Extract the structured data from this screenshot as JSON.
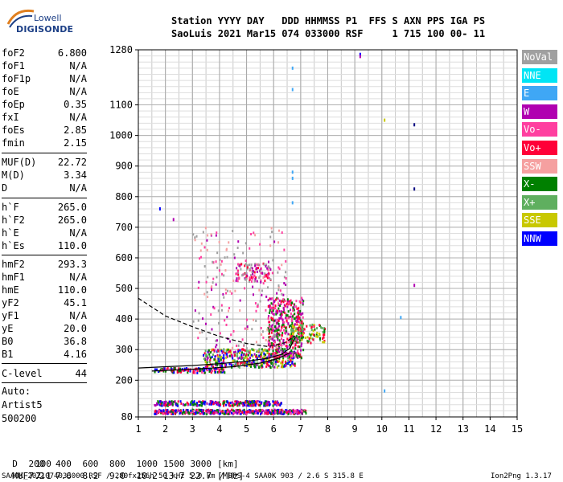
{
  "logo": {
    "line1": "Lowell",
    "line2": "DIGISONDE"
  },
  "header": {
    "row1": "Station YYYY DAY   DDD HHMMSS P1  FFS S AXN PPS IGA PS",
    "row2": "SaoLuis 2021 Mar15 074 033000 RSF     1 715 100 00- 11"
  },
  "params": [
    {
      "label": "foF2",
      "value": "6.800"
    },
    {
      "label": "foF1",
      "value": "N/A"
    },
    {
      "label": "foF1p",
      "value": "N/A"
    },
    {
      "label": "foE",
      "value": "N/A"
    },
    {
      "label": "foEp",
      "value": "0.35"
    },
    {
      "label": "fxI",
      "value": "N/A"
    },
    {
      "label": "foEs",
      "value": "2.85"
    },
    {
      "label": "fmin",
      "value": "2.15"
    },
    {
      "label": "MUF(D)",
      "value": "22.72"
    },
    {
      "label": "M(D)",
      "value": "3.34"
    },
    {
      "label": "D",
      "value": "N/A"
    },
    {
      "label": "h`F",
      "value": "265.0"
    },
    {
      "label": "h`F2",
      "value": "265.0"
    },
    {
      "label": "h`E",
      "value": "N/A"
    },
    {
      "label": "h`Es",
      "value": "110.0"
    },
    {
      "label": "hmF2",
      "value": "293.3"
    },
    {
      "label": "hmF1",
      "value": "N/A"
    },
    {
      "label": "hmE",
      "value": "110.0"
    },
    {
      "label": "yF2",
      "value": "45.1"
    },
    {
      "label": "yF1",
      "value": "N/A"
    },
    {
      "label": "yE",
      "value": "20.0"
    },
    {
      "label": "B0",
      "value": "36.8"
    },
    {
      "label": "B1",
      "value": "4.16"
    },
    {
      "label": "C-level",
      "value": "44"
    }
  ],
  "auto": {
    "line1": "Auto:",
    "line2": "Artist5",
    "line3": "500200"
  },
  "legend": [
    {
      "label": "NoVal",
      "color": "#a0a0a0"
    },
    {
      "label": "NNE",
      "color": "#00e5f5"
    },
    {
      "label": "E",
      "color": "#3fa7f5"
    },
    {
      "label": "W",
      "color": "#b000b0"
    },
    {
      "label": "Vo-",
      "color": "#ff3fa0"
    },
    {
      "label": "Vo+",
      "color": "#ff0038"
    },
    {
      "label": "SSW",
      "color": "#f5a0a0"
    },
    {
      "label": "X-",
      "color": "#008000"
    },
    {
      "label": "X+",
      "color": "#5faf5f"
    },
    {
      "label": "SSE",
      "color": "#c8c800"
    },
    {
      "label": "NNW",
      "color": "#0000ff"
    }
  ],
  "muf_table": {
    "d_label": "D",
    "d_values": [
      "100",
      "200",
      "400",
      "600",
      "800",
      "1000",
      "1500",
      "3000",
      "[km]"
    ],
    "m_label": "MUF",
    "m_values": [
      "7.1",
      "7.2",
      "7.6",
      "8.2",
      "9.0",
      "10.2",
      "13.7",
      "22.7",
      "[MHz]"
    ]
  },
  "footer": {
    "left": "SAA0K_2021074033000.RSF / 280fx256h 50 kHz 5.0 km / DPS-4 SAA0K 903 / 2.6 S 315.8 E",
    "right": "Ion2Png 1.3.17"
  },
  "chart_data": {
    "type": "scatter",
    "xlim": [
      1,
      15
    ],
    "ylim": [
      80,
      1280
    ],
    "x_ticks": [
      1,
      2,
      3,
      4,
      5,
      6,
      7,
      8,
      9,
      10,
      11,
      12,
      13,
      14,
      15
    ],
    "y_ticks": [
      80,
      200,
      300,
      400,
      500,
      600,
      700,
      800,
      900,
      1000,
      1100,
      1280
    ],
    "grid": true,
    "legend_placement": "right",
    "traces": [
      {
        "name": "trace-solid-upper",
        "style": "solid",
        "x": [
          1.0,
          2.0,
          3.0,
          4.0,
          5.0,
          5.8,
          6.3,
          6.6,
          6.8
        ],
        "y": [
          240,
          244,
          248,
          254,
          262,
          272,
          285,
          305,
          340
        ]
      },
      {
        "name": "trace-solid-lower",
        "style": "solid",
        "x": [
          1.5,
          3.0,
          4.5,
          5.5,
          6.2,
          6.6
        ],
        "y": [
          230,
          236,
          244,
          256,
          272,
          290
        ]
      },
      {
        "name": "trace-dashed",
        "style": "dashed",
        "x": [
          1.0,
          2.0,
          3.0,
          4.0,
          5.0,
          5.8,
          6.4,
          6.8
        ],
        "y": [
          468,
          410,
          375,
          343,
          320,
          310,
          322,
          345
        ]
      }
    ],
    "clusters": [
      {
        "xr": [
          1.6,
          7.2
        ],
        "yr": [
          88,
          102
        ],
        "n": 520,
        "colors": [
          "#0000ff",
          "#ff0038",
          "#b000b0",
          "#008000",
          "#ff3fa0"
        ]
      },
      {
        "xr": [
          1.6,
          6.3
        ],
        "yr": [
          115,
          130
        ],
        "n": 260,
        "colors": [
          "#0000ff",
          "#b000b0",
          "#ff0038",
          "#008000"
        ]
      },
      {
        "xr": [
          1.6,
          4.2
        ],
        "yr": [
          222,
          238
        ],
        "n": 130,
        "colors": [
          "#ff0038",
          "#ff3fa0",
          "#008000",
          "#0000ff"
        ]
      },
      {
        "xr": [
          3.4,
          6.8
        ],
        "yr": [
          240,
          300
        ],
        "n": 420,
        "colors": [
          "#ff0038",
          "#008000",
          "#b000b0",
          "#c8c800",
          "#0000ff",
          "#5faf5f"
        ]
      },
      {
        "xr": [
          5.8,
          7.1
        ],
        "yr": [
          270,
          470
        ],
        "n": 420,
        "colors": [
          "#ff0038",
          "#ff3fa0",
          "#b000b0",
          "#008000"
        ]
      },
      {
        "xr": [
          6.6,
          7.9
        ],
        "yr": [
          320,
          380
        ],
        "n": 120,
        "colors": [
          "#5faf5f",
          "#c8c800",
          "#008000",
          "#ff0038"
        ]
      },
      {
        "xr": [
          4.6,
          5.9
        ],
        "yr": [
          520,
          580
        ],
        "n": 110,
        "colors": [
          "#ff0038",
          "#ff3fa0",
          "#b000b0",
          "#a0a0a0"
        ]
      },
      {
        "xr": [
          3.0,
          6.5
        ],
        "yr": [
          300,
          700
        ],
        "n": 200,
        "colors": [
          "#a0a0a0",
          "#b000b0",
          "#f5a0a0",
          "#ff3fa0"
        ]
      }
    ],
    "isolated_points": [
      {
        "x": 1.8,
        "y": 760,
        "color": "#0000ff"
      },
      {
        "x": 2.3,
        "y": 725,
        "color": "#b000b0"
      },
      {
        "x": 6.7,
        "y": 1220,
        "color": "#3fa7f5"
      },
      {
        "x": 6.7,
        "y": 1150,
        "color": "#3fa7f5"
      },
      {
        "x": 6.7,
        "y": 880,
        "color": "#3fa7f5"
      },
      {
        "x": 6.7,
        "y": 860,
        "color": "#3fa7f5"
      },
      {
        "x": 6.7,
        "y": 780,
        "color": "#3fa7f5"
      },
      {
        "x": 9.2,
        "y": 1265,
        "color": "#0000ff"
      },
      {
        "x": 9.2,
        "y": 1258,
        "color": "#b000b0"
      },
      {
        "x": 10.1,
        "y": 1050,
        "color": "#c8c800"
      },
      {
        "x": 10.1,
        "y": 165,
        "color": "#3fa7f5"
      },
      {
        "x": 10.7,
        "y": 405,
        "color": "#3fa7f5"
      },
      {
        "x": 11.2,
        "y": 1035,
        "color": "#000080"
      },
      {
        "x": 11.2,
        "y": 825,
        "color": "#000080"
      },
      {
        "x": 11.2,
        "y": 510,
        "color": "#b000b0"
      }
    ]
  }
}
